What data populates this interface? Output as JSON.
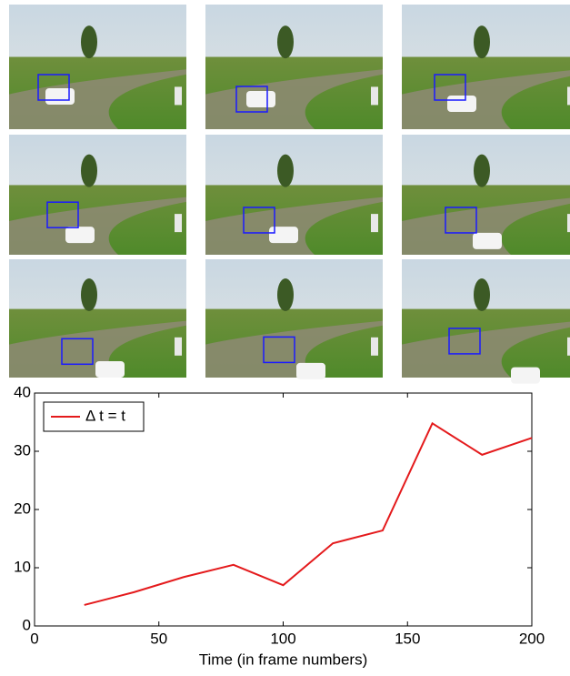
{
  "chart_data": {
    "type": "line",
    "xlabel": "Time (in frame numbers)",
    "x": [
      20,
      40,
      60,
      80,
      100,
      120,
      140,
      160,
      180,
      200
    ],
    "series": [
      {
        "name": "Δ t = t",
        "color": "#e41a1c",
        "values": [
          3.6,
          5.8,
          8.4,
          10.5,
          7.0,
          14.2,
          16.4,
          34.8,
          29.4,
          32.3
        ]
      }
    ],
    "xlim": [
      0,
      200
    ],
    "xticks": [
      0,
      50,
      100,
      150,
      200
    ],
    "ylim": [
      0,
      40
    ],
    "yticks": [
      0,
      10,
      20,
      30,
      40
    ],
    "grid": false,
    "legend": "upper-left"
  }
}
